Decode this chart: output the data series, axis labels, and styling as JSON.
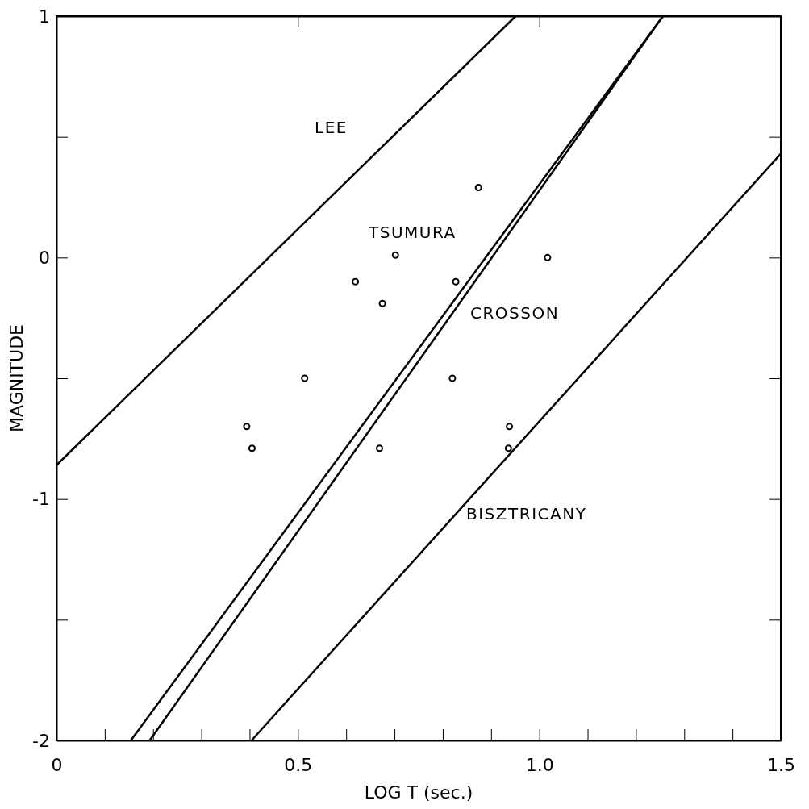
{
  "chart_data": {
    "type": "line",
    "xlabel": "LOG T (sec.)",
    "ylabel": "MAGNITUDE",
    "xlim": [
      0,
      1.5
    ],
    "ylim": [
      -2,
      1
    ],
    "xticks": [
      0,
      {
        "value": 0.1,
        "label": null
      },
      {
        "value": 0.2,
        "label": null
      },
      {
        "value": 0.3,
        "label": null
      },
      {
        "value": 0.4,
        "label": null
      },
      0.5,
      {
        "value": 0.6,
        "label": null
      },
      {
        "value": 0.7,
        "label": null
      },
      {
        "value": 0.8,
        "label": null
      },
      {
        "value": 0.9,
        "label": null
      },
      {
        "value": 1,
        "label": "1.0"
      },
      {
        "value": 1.1,
        "label": null
      },
      {
        "value": 1.2,
        "label": null
      },
      {
        "value": 1.3,
        "label": null
      },
      {
        "value": 1.4,
        "label": null
      },
      1.5
    ],
    "yticks": [
      -2,
      {
        "value": -1.5,
        "label": null
      },
      -1,
      {
        "value": -0.5,
        "label": null
      },
      0,
      {
        "value": 0.5,
        "label": null
      },
      1
    ],
    "grid": false,
    "line_style": "solid",
    "series": [
      {
        "name": "LEE",
        "color": "#000000",
        "x": [
          0,
          0.951
        ],
        "values": [
          -0.86,
          1
        ]
      },
      {
        "name": "TSUMURA",
        "color": "#000000",
        "x": [
          0.154,
          1.256
        ],
        "values": [
          -2,
          1
        ]
      },
      {
        "name": "CROSSON",
        "color": "#000000",
        "x": [
          0.193,
          1.256
        ],
        "values": [
          -2,
          1
        ]
      },
      {
        "name": "BISZTRICANY",
        "color": "#000000",
        "x": [
          0.404,
          1.5
        ],
        "values": [
          -2,
          0.43
        ]
      },
      {
        "type": "scatter",
        "marker": "circle",
        "color": "#000000",
        "x": [
          0.874,
          0.702,
          0.619,
          0.827,
          0.675,
          1.017,
          0.514,
          0.82,
          0.394,
          0.405,
          0.669,
          0.938,
          0.936
        ],
        "values": [
          0.29,
          0.01,
          -0.1,
          -0.1,
          -0.19,
          0,
          -0.5,
          -0.5,
          -0.7,
          -0.79,
          -0.79,
          -0.7,
          -0.79
        ]
      }
    ]
  }
}
